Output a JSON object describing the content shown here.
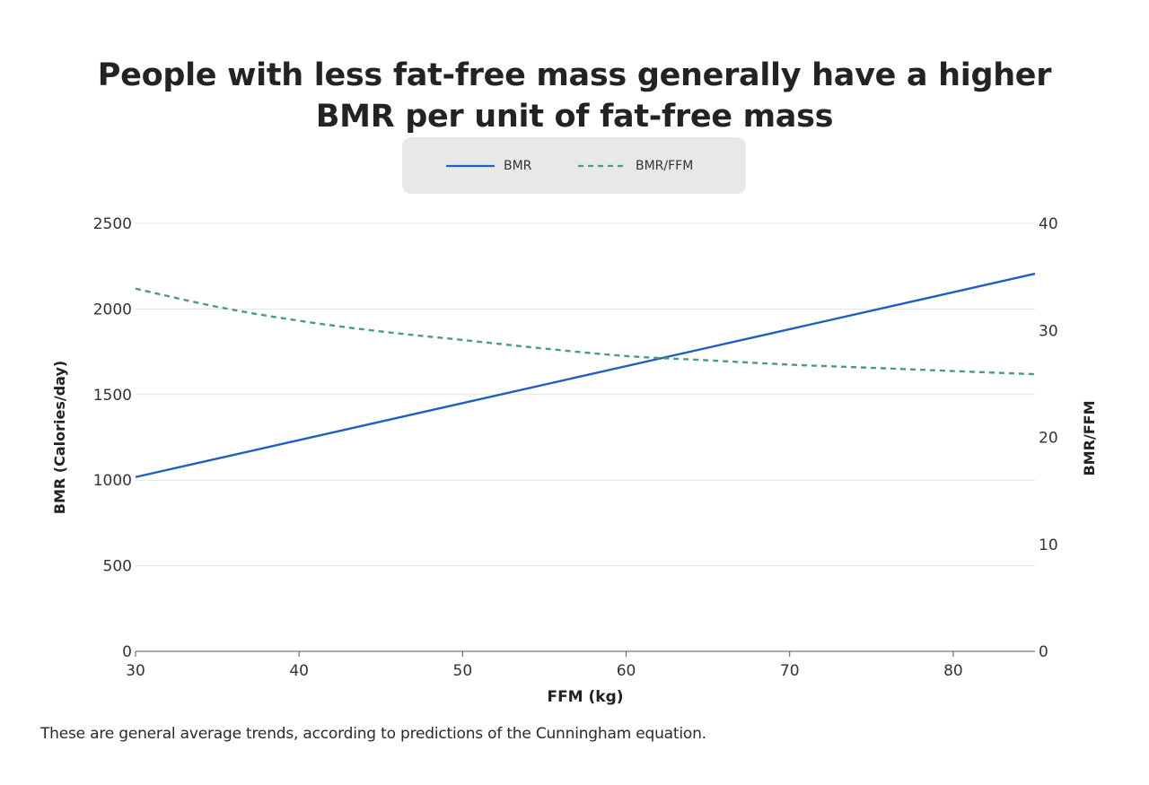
{
  "chart_data": {
    "type": "line",
    "title_lines": [
      "People with less fat-free mass generally have a higher",
      "BMR per unit of fat-free mass"
    ],
    "xlabel": "FFM (kg)",
    "ylabel_left": "BMR (Calories/day)",
    "ylabel_right": "BMR/FFM",
    "xlim": [
      30,
      85
    ],
    "ylim_left": [
      0,
      2500
    ],
    "ylim_right": [
      0,
      40
    ],
    "x_ticks": [
      30,
      40,
      50,
      60,
      70,
      80
    ],
    "y_ticks_left": [
      0,
      500,
      1000,
      1500,
      2000,
      2500
    ],
    "y_ticks_right": [
      0,
      10,
      20,
      30,
      40
    ],
    "grid": "horizontal",
    "legend_position": "top-center",
    "series": [
      {
        "name": "BMR",
        "axis": "left",
        "style": "solid",
        "color": "#1f5fbf",
        "x": [
          30,
          85
        ],
        "values": [
          1018,
          2206
        ]
      },
      {
        "name": "BMR/FFM",
        "axis": "right",
        "style": "dashed",
        "color": "#4a9d74",
        "x": [
          30,
          35,
          40,
          45,
          50,
          55,
          60,
          65,
          70,
          75,
          80,
          85
        ],
        "values": [
          33.9,
          32.2,
          30.9,
          29.9,
          29.1,
          28.3,
          27.6,
          27.2,
          26.8,
          26.5,
          26.2,
          25.9
        ]
      }
    ]
  },
  "caption": "These are general average trends, according to predictions of the Cunningham equation."
}
